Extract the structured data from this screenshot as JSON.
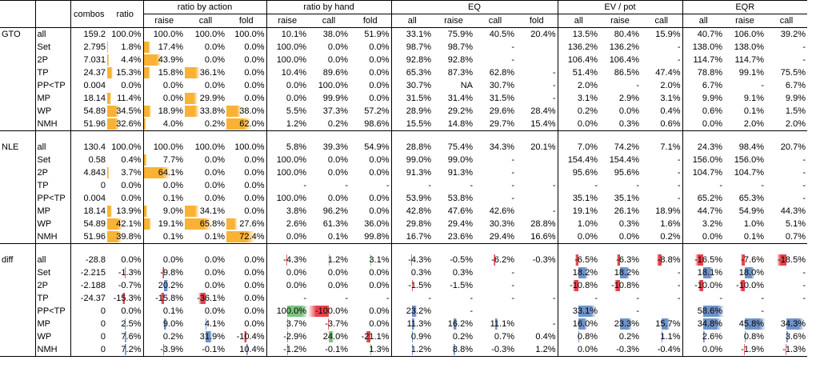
{
  "header": {
    "combos": "combos",
    "ratio": "ratio",
    "groups": [
      "ratio by action",
      "ratio by hand",
      "EQ",
      "EV / pot",
      "EQR"
    ],
    "sub": [
      "raise",
      "call",
      "fold",
      "raise",
      "call",
      "fold",
      "all",
      "raise",
      "call",
      "fold",
      "all",
      "raise",
      "call",
      "all",
      "raise",
      "call"
    ]
  },
  "colors": {
    "orange": "#F9B233",
    "red": "#E8404A",
    "green": "#7BC47F",
    "blue": "#6E93C9"
  },
  "sections": [
    {
      "name": "GTO",
      "rows": [
        {
          "label": "all",
          "c": [
            "159.2",
            "100.0%",
            "100.0%",
            "100.0%",
            "100.0%",
            "10.1%",
            "38.0%",
            "51.9%",
            "33.1%",
            "75.9%",
            "40.5%",
            "20.4%",
            "13.5%",
            "80.4%",
            "15.9%",
            "40.7%",
            "106.0%",
            "39.2%"
          ]
        },
        {
          "label": "Set",
          "c": [
            "2.795",
            "1.8%",
            "17.4%",
            "0.0%",
            "0.0%",
            "100.0%",
            "0.0%",
            "0.0%",
            "98.7%",
            "98.7%",
            "-",
            "",
            "136.2%",
            "136.2%",
            "-",
            "138.0%",
            "138.0%",
            "-"
          ]
        },
        {
          "label": "2P",
          "c": [
            "7.031",
            "4.4%",
            "43.9%",
            "0.0%",
            "0.0%",
            "100.0%",
            "0.0%",
            "0.0%",
            "92.8%",
            "92.8%",
            "-",
            "",
            "106.4%",
            "106.4%",
            "-",
            "114.7%",
            "114.7%",
            "-"
          ]
        },
        {
          "label": "TP",
          "c": [
            "24.37",
            "15.3%",
            "15.8%",
            "36.1%",
            "0.0%",
            "10.4%",
            "89.6%",
            "0.0%",
            "65.3%",
            "87.3%",
            "62.8%",
            "-",
            "51.4%",
            "86.5%",
            "47.4%",
            "78.8%",
            "99.1%",
            "75.5%"
          ]
        },
        {
          "label": "PP<TP",
          "c": [
            "0.004",
            "0.0%",
            "0.0%",
            "0.0%",
            "0.0%",
            "0.0%",
            "100.0%",
            "0.0%",
            "30.7%",
            "NA",
            "30.7%",
            "-",
            "2.0%",
            "-",
            "2.0%",
            "6.7%",
            "-",
            "6.7%"
          ]
        },
        {
          "label": "MP",
          "c": [
            "18.14",
            "11.4%",
            "0.0%",
            "29.9%",
            "0.0%",
            "0.0%",
            "99.9%",
            "0.0%",
            "31.5%",
            "31.4%",
            "31.5%",
            "-",
            "3.1%",
            "2.9%",
            "3.1%",
            "9.9%",
            "9.1%",
            "9.9%"
          ]
        },
        {
          "label": "WP",
          "c": [
            "54.89",
            "34.5%",
            "18.9%",
            "33.8%",
            "38.0%",
            "5.5%",
            "37.3%",
            "57.2%",
            "28.9%",
            "29.2%",
            "29.6%",
            "28.4%",
            "0.2%",
            "0.0%",
            "0.4%",
            "0.6%",
            "0.1%",
            "1.5%"
          ]
        },
        {
          "label": "NMH",
          "c": [
            "51.96",
            "32.6%",
            "4.0%",
            "0.2%",
            "62.0%",
            "1.2%",
            "0.2%",
            "98.6%",
            "15.5%",
            "14.8%",
            "29.7%",
            "15.4%",
            "0.0%",
            "0.3%",
            "0.6%",
            "0.0%",
            "2.0%",
            "2.0%"
          ]
        }
      ]
    },
    {
      "name": "NLE",
      "rows": [
        {
          "label": "all",
          "c": [
            "130.4",
            "100.0%",
            "100.0%",
            "100.0%",
            "100.0%",
            "5.8%",
            "39.3%",
            "54.9%",
            "28.8%",
            "75.4%",
            "34.3%",
            "20.1%",
            "7.0%",
            "74.2%",
            "7.1%",
            "24.3%",
            "98.4%",
            "20.7%"
          ]
        },
        {
          "label": "Set",
          "c": [
            "0.58",
            "0.4%",
            "7.7%",
            "0.0%",
            "0.0%",
            "100.0%",
            "0.0%",
            "0.0%",
            "99.0%",
            "99.0%",
            "-",
            "",
            "154.4%",
            "154.4%",
            "-",
            "156.0%",
            "156.0%",
            "-"
          ]
        },
        {
          "label": "2P",
          "c": [
            "4.843",
            "3.7%",
            "64.1%",
            "0.0%",
            "0.0%",
            "100.0%",
            "0.0%",
            "0.0%",
            "91.3%",
            "91.3%",
            "-",
            "",
            "95.6%",
            "95.6%",
            "-",
            "104.7%",
            "104.7%",
            "-"
          ]
        },
        {
          "label": "TP",
          "c": [
            "0",
            "0.0%",
            "0.0%",
            "0.0%",
            "0.0%",
            "-",
            "-",
            "-",
            "-",
            "-",
            "-",
            "-",
            "-",
            "-",
            "-",
            "-",
            "-",
            "-"
          ]
        },
        {
          "label": "PP<TP",
          "c": [
            "0.004",
            "0.0%",
            "0.1%",
            "0.0%",
            "0.0%",
            "100.0%",
            "0.0%",
            "0.0%",
            "53.9%",
            "53.8%",
            "-",
            "",
            "35.1%",
            "35.1%",
            "-",
            "65.2%",
            "65.3%",
            "-"
          ]
        },
        {
          "label": "MP",
          "c": [
            "18.14",
            "13.9%",
            "9.0%",
            "34.1%",
            "0.0%",
            "3.8%",
            "96.2%",
            "0.0%",
            "42.8%",
            "47.6%",
            "42.6%",
            "-",
            "19.1%",
            "26.1%",
            "18.9%",
            "44.7%",
            "54.9%",
            "44.3%"
          ]
        },
        {
          "label": "WP",
          "c": [
            "54.89",
            "42.1%",
            "19.1%",
            "65.8%",
            "27.6%",
            "2.6%",
            "61.3%",
            "36.0%",
            "29.8%",
            "29.4%",
            "30.3%",
            "28.8%",
            "1.0%",
            "0.3%",
            "1.6%",
            "3.2%",
            "1.0%",
            "5.1%"
          ]
        },
        {
          "label": "NMH",
          "c": [
            "51.96",
            "39.8%",
            "0.1%",
            "0.1%",
            "72.4%",
            "0.0%",
            "0.1%",
            "99.8%",
            "16.7%",
            "23.6%",
            "29.4%",
            "16.6%",
            "0.0%",
            "0.0%",
            "0.2%",
            "0.0%",
            "0.1%",
            "0.7%"
          ]
        }
      ]
    },
    {
      "name": "diff",
      "rows": [
        {
          "label": "all",
          "c": [
            "-28.8",
            "0.0%",
            "0.0%",
            "0.0%",
            "0.0%",
            "-4.3%",
            "1.2%",
            "3.1%",
            "-4.3%",
            "-0.5%",
            "-6.2%",
            "-0.3%",
            "-6.5%",
            "-6.3%",
            "-8.8%",
            "-16.5%",
            "-7.6%",
            "-18.5%"
          ]
        },
        {
          "label": "Set",
          "c": [
            "-2.215",
            "-1.3%",
            "-9.8%",
            "0.0%",
            "0.0%",
            "0.0%",
            "0.0%",
            "0.0%",
            "0.3%",
            "0.3%",
            "-",
            "",
            "18.2%",
            "18.2%",
            "-",
            "18.1%",
            "18.0%",
            "-"
          ]
        },
        {
          "label": "2P",
          "c": [
            "-2.188",
            "-0.7%",
            "20.2%",
            "0.0%",
            "0.0%",
            "0.0%",
            "0.0%",
            "0.0%",
            "-1.5%",
            "-1.5%",
            "-",
            "",
            "-10.8%",
            "-10.8%",
            "-",
            "-10.0%",
            "-10.0%",
            "-"
          ]
        },
        {
          "label": "TP",
          "c": [
            "-24.37",
            "-15.3%",
            "-15.8%",
            "-36.1%",
            "0.0%",
            "-",
            "-",
            "-",
            "-",
            "-",
            "-",
            "-",
            "-",
            "-",
            "-",
            "-",
            "-",
            "-"
          ]
        },
        {
          "label": "PP<TP",
          "c": [
            "0",
            "0.0%",
            "0.1%",
            "0.0%",
            "0.0%",
            "100.0%",
            "-100.0%",
            "0.0%",
            "23.2%",
            "-",
            "",
            "",
            "33.1%",
            "-",
            "",
            "58.6%",
            "-",
            ""
          ]
        },
        {
          "label": "MP",
          "c": [
            "0",
            "2.5%",
            "9.0%",
            "4.1%",
            "0.0%",
            "3.7%",
            "-3.7%",
            "0.0%",
            "11.3%",
            "16.2%",
            "11.1%",
            "-",
            "16.0%",
            "23.3%",
            "15.7%",
            "34.8%",
            "45.8%",
            "34.3%"
          ]
        },
        {
          "label": "WP",
          "c": [
            "0",
            "7.6%",
            "0.2%",
            "31.9%",
            "-10.4%",
            "-2.9%",
            "24.0%",
            "-21.1%",
            "0.9%",
            "0.2%",
            "0.7%",
            "0.4%",
            "0.8%",
            "0.2%",
            "1.1%",
            "2.6%",
            "0.8%",
            "3.6%"
          ]
        },
        {
          "label": "NMH",
          "c": [
            "0",
            "7.2%",
            "-3.9%",
            "-0.1%",
            "10.4%",
            "-1.2%",
            "-0.1%",
            "1.3%",
            "1.2%",
            "8.8%",
            "-0.3%",
            "1.2%",
            "0.0%",
            "-0.3%",
            "-0.4%",
            "0.0%",
            "-1.9%",
            "-1.3%"
          ]
        }
      ]
    }
  ]
}
